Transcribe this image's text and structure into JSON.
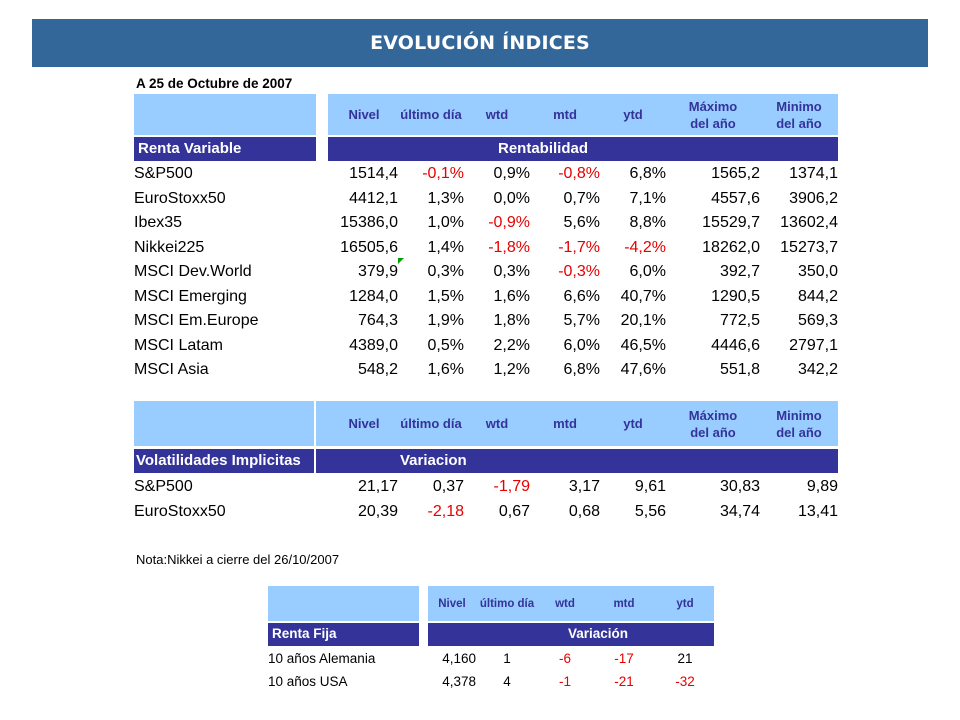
{
  "banner": {
    "title": "EVOLUCIÓN ÍNDICES"
  },
  "date_label": "A 25 de Octubre de 2007",
  "columns": {
    "nivel": "Nivel",
    "ultimo": "último día",
    "wtd": "wtd",
    "mtd": "mtd",
    "ytd": "ytd",
    "max1": "Máximo",
    "max2": "del año",
    "min1": "Minimo",
    "min2": "del año"
  },
  "renta_variable": {
    "section_label": "Renta Variable",
    "group_label": "Rentabilidad",
    "rows": [
      {
        "name": "S&P500",
        "nivel": "1514,4",
        "ultimo": "-0,1%",
        "wtd": "0,9%",
        "mtd": "-0,8%",
        "ytd": "6,8%",
        "max": "1565,2",
        "min": "1374,1"
      },
      {
        "name": "EuroStoxx50",
        "nivel": "4412,1",
        "ultimo": "1,3%",
        "wtd": "0,0%",
        "mtd": "0,7%",
        "ytd": "7,1%",
        "max": "4557,6",
        "min": "3906,2"
      },
      {
        "name": "Ibex35",
        "nivel": "15386,0",
        "ultimo": "1,0%",
        "wtd": "-0,9%",
        "mtd": "5,6%",
        "ytd": "8,8%",
        "max": "15529,7",
        "min": "13602,4"
      },
      {
        "name": "Nikkei225",
        "nivel": "16505,6",
        "ultimo": "1,4%",
        "wtd": "-1,8%",
        "mtd": "-1,7%",
        "ytd": "-4,2%",
        "max": "18262,0",
        "min": "15273,7"
      },
      {
        "name": "MSCI Dev.World",
        "nivel": "379,9",
        "ultimo": "0,3%",
        "wtd": "0,3%",
        "mtd": "-0,3%",
        "ytd": "6,0%",
        "max": "392,7",
        "min": "350,0"
      },
      {
        "name": "MSCI Emerging",
        "nivel": "1284,0",
        "ultimo": "1,5%",
        "wtd": "1,6%",
        "mtd": "6,6%",
        "ytd": "40,7%",
        "max": "1290,5",
        "min": "844,2"
      },
      {
        "name": "MSCI Em.Europe",
        "nivel": "764,3",
        "ultimo": "1,9%",
        "wtd": "1,8%",
        "mtd": "5,7%",
        "ytd": "20,1%",
        "max": "772,5",
        "min": "569,3"
      },
      {
        "name": "MSCI Latam",
        "nivel": "4389,0",
        "ultimo": "0,5%",
        "wtd": "2,2%",
        "mtd": "6,0%",
        "ytd": "46,5%",
        "max": "4446,6",
        "min": "2797,1"
      },
      {
        "name": "MSCI Asia",
        "nivel": "548,2",
        "ultimo": "1,6%",
        "wtd": "1,2%",
        "mtd": "6,8%",
        "ytd": "47,6%",
        "max": "551,8",
        "min": "342,2"
      }
    ]
  },
  "volatilidades": {
    "section_label": "Volatilidades Implicitas",
    "group_label": "Variacion",
    "rows": [
      {
        "name": "S&P500",
        "nivel": "21,17",
        "ultimo": "0,37",
        "wtd": "-1,79",
        "mtd": "3,17",
        "ytd": "9,61",
        "max": "30,83",
        "min": "9,89"
      },
      {
        "name": "EuroStoxx50",
        "nivel": "20,39",
        "ultimo": "-2,18",
        "wtd": "0,67",
        "mtd": "0,68",
        "ytd": "5,56",
        "max": "34,74",
        "min": "13,41"
      }
    ]
  },
  "note": "Nota:Nikkei a cierre del 26/10/2007",
  "renta_fija": {
    "section_label": "Renta Fija",
    "group_label": "Variación",
    "rows": [
      {
        "name": "10 años Alemania",
        "nivel": "4,160",
        "ultimo": "1",
        "wtd": "-6",
        "mtd": "-17",
        "ytd": "21"
      },
      {
        "name": "10 años USA",
        "nivel": "4,378",
        "ultimo": "4",
        "wtd": "-1",
        "mtd": "-21",
        "ytd": "-32"
      }
    ]
  },
  "colors": {
    "banner": "#336699",
    "header_bg": "#99ccff",
    "bar": "#333399",
    "negative": "#e60000"
  }
}
